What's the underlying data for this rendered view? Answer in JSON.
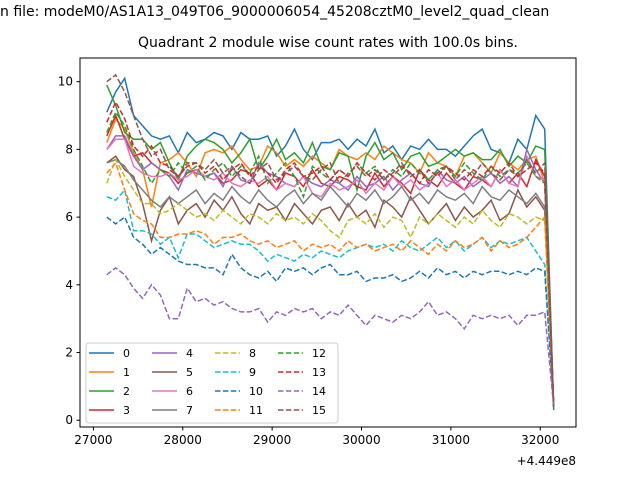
{
  "suptitle": "n file: modeM0/AS1A13_049T06_9000006054_45208cztM0_level2_quad_clean",
  "chart_data": {
    "type": "line",
    "title": "Quadrant 2 module wise count rates with 100.0s bins.",
    "xlabel": "",
    "ylabel": "",
    "x_offset_label": "+4.449e8",
    "x_start": 27150,
    "x_step": 100,
    "xlim": [
      26850,
      32400
    ],
    "ylim": [
      -0.2,
      10.7
    ],
    "xticks": [
      27000,
      28000,
      29000,
      30000,
      31000,
      32000
    ],
    "xtick_labels": [
      "27000",
      "28000",
      "29000",
      "30000",
      "31000",
      "32000"
    ],
    "yticks": [
      0,
      2,
      4,
      6,
      8,
      10
    ],
    "ytick_labels": [
      "0",
      "2",
      "4",
      "6",
      "8",
      "10"
    ],
    "legend_placement": "lower-left",
    "legend_columns": 4,
    "series": [
      {
        "name": "0",
        "color": "#1f77b4",
        "style": "solid",
        "values": [
          9.1,
          9.7,
          10.1,
          9.0,
          8.7,
          8.4,
          8.3,
          8.4,
          7.9,
          8.5,
          8.2,
          8.3,
          8.5,
          8.4,
          8.0,
          8.5,
          8.3,
          8.3,
          8.4,
          7.8,
          8.1,
          8.6,
          8.0,
          7.7,
          8.2,
          8.2,
          8.3,
          8.0,
          8.3,
          8.1,
          8.6,
          7.9,
          8.1,
          7.7,
          8.1,
          8.0,
          8.3,
          8.0,
          8.0,
          7.8,
          8.1,
          8.4,
          8.6,
          8.0,
          7.9,
          7.6,
          8.3,
          8.0,
          9.0,
          8.6,
          0.3
        ]
      },
      {
        "name": "1",
        "color": "#ff7f0e",
        "style": "solid",
        "values": [
          8.2,
          8.9,
          8.6,
          7.9,
          7.4,
          6.3,
          7.6,
          7.7,
          7.9,
          7.6,
          7.2,
          7.9,
          8.0,
          7.9,
          8.1,
          7.7,
          7.4,
          7.5,
          8.1,
          7.9,
          7.5,
          7.7,
          7.5,
          7.8,
          7.6,
          7.4,
          8.0,
          7.8,
          7.7,
          7.9,
          7.7,
          8.1,
          7.9,
          7.7,
          7.6,
          7.3,
          7.9,
          7.6,
          7.5,
          7.2,
          7.8,
          7.9,
          7.6,
          7.3,
          7.9,
          7.6,
          7.4,
          7.7,
          7.8,
          7.0,
          0.4
        ]
      },
      {
        "name": "2",
        "color": "#2ca02c",
        "style": "solid",
        "values": [
          9.9,
          9.3,
          8.5,
          8.3,
          8.3,
          8.0,
          8.2,
          7.6,
          7.1,
          7.8,
          8.1,
          8.3,
          8.2,
          8.0,
          7.6,
          7.9,
          8.3,
          7.4,
          7.8,
          8.3,
          7.7,
          7.9,
          7.6,
          8.2,
          7.5,
          7.4,
          7.9,
          7.8,
          6.8,
          7.8,
          8.2,
          7.7,
          7.9,
          7.4,
          7.8,
          7.9,
          7.5,
          7.6,
          7.8,
          8.0,
          7.8,
          7.9,
          7.7,
          7.7,
          8.0,
          7.5,
          7.8,
          7.6,
          8.1,
          8.0,
          0.4
        ]
      },
      {
        "name": "3",
        "color": "#d62728",
        "style": "solid",
        "values": [
          8.4,
          9.0,
          8.3,
          7.8,
          7.9,
          7.6,
          7.4,
          7.3,
          7.0,
          7.3,
          7.4,
          7.2,
          7.3,
          7.0,
          7.1,
          7.4,
          7.3,
          6.9,
          7.1,
          6.8,
          7.3,
          7.2,
          6.9,
          7.4,
          7.0,
          6.9,
          7.2,
          7.1,
          6.9,
          6.8,
          7.3,
          6.9,
          7.2,
          7.0,
          6.7,
          7.4,
          7.1,
          6.9,
          7.3,
          7.0,
          6.8,
          7.2,
          7.1,
          6.9,
          7.4,
          7.0,
          7.3,
          6.9,
          7.7,
          7.2,
          0.4
        ]
      },
      {
        "name": "4",
        "color": "#9467bd",
        "style": "solid",
        "values": [
          8.0,
          8.4,
          8.4,
          7.8,
          7.4,
          7.6,
          7.4,
          7.2,
          6.8,
          7.4,
          7.3,
          7.2,
          7.3,
          6.9,
          7.5,
          7.1,
          7.0,
          7.6,
          7.3,
          7.2,
          7.0,
          6.9,
          7.2,
          7.0,
          6.9,
          7.1,
          7.0,
          6.8,
          7.2,
          6.9,
          7.0,
          7.2,
          6.8,
          7.1,
          7.3,
          7.0,
          6.9,
          7.4,
          7.1,
          7.0,
          7.2,
          6.9,
          7.1,
          7.3,
          7.0,
          7.2,
          6.9,
          8.0,
          7.4,
          7.0,
          0.4
        ]
      },
      {
        "name": "5",
        "color": "#8c564b",
        "style": "solid",
        "values": [
          7.6,
          7.8,
          7.4,
          7.2,
          6.4,
          5.3,
          6.2,
          6.6,
          5.8,
          6.2,
          6.4,
          6.0,
          6.5,
          6.2,
          6.6,
          6.1,
          5.8,
          6.4,
          6.2,
          6.3,
          5.9,
          6.4,
          6.1,
          5.8,
          6.2,
          6.3,
          5.9,
          6.4,
          6.0,
          6.2,
          5.7,
          6.5,
          6.3,
          6.0,
          6.6,
          6.2,
          5.8,
          6.1,
          6.4,
          5.9,
          6.3,
          6.0,
          6.2,
          6.5,
          5.9,
          6.1,
          6.8,
          6.3,
          6.6,
          6.2,
          0.4
        ]
      },
      {
        "name": "6",
        "color": "#e377c2",
        "style": "solid",
        "values": [
          8.0,
          8.3,
          8.3,
          7.5,
          7.3,
          7.2,
          7.2,
          7.3,
          7.1,
          7.2,
          7.4,
          7.2,
          7.1,
          7.3,
          7.0,
          6.9,
          7.1,
          7.0,
          7.2,
          6.8,
          7.0,
          6.9,
          7.2,
          6.7,
          6.6,
          7.0,
          6.8,
          6.9,
          7.1,
          6.7,
          7.0,
          6.8,
          7.2,
          6.9,
          7.1,
          6.8,
          7.0,
          7.3,
          6.9,
          7.1,
          6.8,
          7.0,
          7.2,
          6.9,
          7.4,
          7.0,
          6.9,
          7.8,
          7.2,
          7.1,
          0.4
        ]
      },
      {
        "name": "7",
        "color": "#7f7f7f",
        "style": "solid",
        "values": [
          7.6,
          7.7,
          7.5,
          7.1,
          6.8,
          6.5,
          6.3,
          6.6,
          6.4,
          6.6,
          6.8,
          6.4,
          6.7,
          6.5,
          6.9,
          6.6,
          6.4,
          6.8,
          6.5,
          6.3,
          6.6,
          6.8,
          6.4,
          6.7,
          6.5,
          6.9,
          6.6,
          6.3,
          6.7,
          6.5,
          6.8,
          6.4,
          6.6,
          6.9,
          6.5,
          6.7,
          6.4,
          6.8,
          6.6,
          6.5,
          6.7,
          6.4,
          6.9,
          6.6,
          6.5,
          6.8,
          6.6,
          6.4,
          6.7,
          6.3,
          0.4
        ]
      },
      {
        "name": "8",
        "color": "#bcbd22",
        "style": "dashed",
        "values": [
          7.0,
          7.7,
          7.2,
          6.8,
          6.4,
          6.4,
          6.1,
          6.2,
          6.4,
          6.2,
          6.0,
          6.1,
          5.9,
          6.2,
          6.0,
          5.8,
          6.1,
          6.0,
          5.8,
          6.1,
          5.9,
          6.0,
          5.8,
          6.1,
          5.9,
          5.6,
          5.4,
          5.9,
          6.0,
          5.8,
          6.1,
          5.7,
          6.0,
          5.9,
          5.4,
          6.0,
          5.8,
          6.1,
          5.9,
          5.7,
          6.0,
          5.8,
          6.2,
          5.9,
          5.7,
          6.1,
          6.0,
          5.8,
          6.0,
          5.9,
          0.4
        ]
      },
      {
        "name": "9",
        "color": "#17becf",
        "style": "dashed",
        "values": [
          6.6,
          6.5,
          6.8,
          5.6,
          5.6,
          5.5,
          5.2,
          5.4,
          4.8,
          5.5,
          5.5,
          5.3,
          5.1,
          5.2,
          5.3,
          5.2,
          5.2,
          5.0,
          4.7,
          4.9,
          4.8,
          4.7,
          4.9,
          4.8,
          5.0,
          4.9,
          4.8,
          5.0,
          5.1,
          5.2,
          5.1,
          5.2,
          5.0,
          5.3,
          5.1,
          5.0,
          5.2,
          5.4,
          5.1,
          5.3,
          5.0,
          5.2,
          5.4,
          5.1,
          5.3,
          5.2,
          5.3,
          5.4,
          5.0,
          4.6,
          0.4
        ]
      },
      {
        "name": "10",
        "color": "#1f77b4",
        "style": "dashed",
        "values": [
          6.0,
          5.8,
          6.0,
          5.4,
          5.2,
          4.9,
          5.1,
          4.9,
          4.7,
          4.6,
          4.6,
          4.5,
          4.5,
          4.3,
          4.9,
          4.5,
          4.3,
          4.2,
          4.4,
          4.1,
          4.5,
          4.4,
          4.5,
          4.3,
          4.5,
          4.6,
          4.3,
          4.3,
          4.4,
          4.1,
          4.2,
          4.2,
          4.3,
          4.1,
          4.2,
          4.4,
          4.2,
          4.5,
          4.3,
          4.4,
          4.2,
          4.4,
          4.3,
          4.4,
          4.4,
          4.3,
          4.4,
          4.3,
          4.5,
          4.4,
          0.4
        ]
      },
      {
        "name": "11",
        "color": "#ff7f0e",
        "style": "dashed",
        "values": [
          7.3,
          7.6,
          6.8,
          6.1,
          5.9,
          5.8,
          5.4,
          5.4,
          5.5,
          5.5,
          5.6,
          5.5,
          5.2,
          5.4,
          5.4,
          5.5,
          5.3,
          5.2,
          5.3,
          5.1,
          5.2,
          5.3,
          5.0,
          5.2,
          5.1,
          5.2,
          5.0,
          5.3,
          5.1,
          5.2,
          5.0,
          5.1,
          5.2,
          5.0,
          5.3,
          5.1,
          4.9,
          5.2,
          5.0,
          5.3,
          5.1,
          5.2,
          5.4,
          5.0,
          5.3,
          5.1,
          5.2,
          5.4,
          5.7,
          6.0,
          0.4
        ]
      },
      {
        "name": "12",
        "color": "#2ca02c",
        "style": "dashed",
        "values": [
          8.5,
          9.1,
          8.7,
          8.0,
          7.5,
          7.0,
          7.4,
          7.2,
          7.6,
          7.3,
          7.5,
          7.1,
          7.4,
          7.6,
          7.2,
          7.5,
          7.3,
          7.8,
          7.0,
          7.3,
          7.6,
          7.2,
          6.6,
          7.5,
          7.3,
          7.1,
          7.4,
          7.2,
          7.6,
          7.3,
          7.5,
          7.1,
          7.4,
          7.2,
          7.6,
          7.3,
          7.1,
          7.4,
          7.5,
          7.2,
          7.6,
          7.3,
          7.1,
          7.5,
          7.2,
          7.4,
          7.3,
          7.6,
          7.2,
          7.0,
          0.4
        ]
      },
      {
        "name": "13",
        "color": "#d62728",
        "style": "dashed",
        "values": [
          8.8,
          9.4,
          8.9,
          8.1,
          7.8,
          8.1,
          7.6,
          7.5,
          7.2,
          7.5,
          7.6,
          7.3,
          7.5,
          7.1,
          7.4,
          7.6,
          7.2,
          7.5,
          7.3,
          7.0,
          7.4,
          7.6,
          7.2,
          7.3,
          7.5,
          7.1,
          7.4,
          7.2,
          7.6,
          7.3,
          7.1,
          7.4,
          7.2,
          7.5,
          7.3,
          7.0,
          7.4,
          7.2,
          7.5,
          7.3,
          7.1,
          7.4,
          7.2,
          7.5,
          7.3,
          7.6,
          7.2,
          7.4,
          7.6,
          7.3,
          0.4
        ]
      },
      {
        "name": "14",
        "color": "#9467bd",
        "style": "dashed",
        "values": [
          4.3,
          4.5,
          4.3,
          3.9,
          3.6,
          4.0,
          3.7,
          3.0,
          3.0,
          3.9,
          3.5,
          3.6,
          3.4,
          3.5,
          3.3,
          3.2,
          3.2,
          3.3,
          2.9,
          3.2,
          3.1,
          3.3,
          3.2,
          3.3,
          3.0,
          3.2,
          3.1,
          3.4,
          3.1,
          2.8,
          3.1,
          3.0,
          2.9,
          3.1,
          3.0,
          3.2,
          3.5,
          3.1,
          3.2,
          3.0,
          2.7,
          3.1,
          3.0,
          3.1,
          3.0,
          3.1,
          2.8,
          3.1,
          3.1,
          3.2,
          0.4
        ]
      },
      {
        "name": "15",
        "color": "#8c564b",
        "style": "dashed",
        "values": [
          10.0,
          10.2,
          9.7,
          9.0,
          8.3,
          7.8,
          8.0,
          7.4,
          7.2,
          7.6,
          7.6,
          7.4,
          7.7,
          7.3,
          7.5,
          7.2,
          7.0,
          7.4,
          7.6,
          7.1,
          7.3,
          7.5,
          7.2,
          7.1,
          7.4,
          7.6,
          7.0,
          7.3,
          7.5,
          7.2,
          7.4,
          7.1,
          7.3,
          7.6,
          7.2,
          7.4,
          7.0,
          7.3,
          7.5,
          7.1,
          7.4,
          7.2,
          7.6,
          7.3,
          7.1,
          7.4,
          7.2,
          7.7,
          7.3,
          7.6,
          0.4
        ]
      }
    ]
  }
}
